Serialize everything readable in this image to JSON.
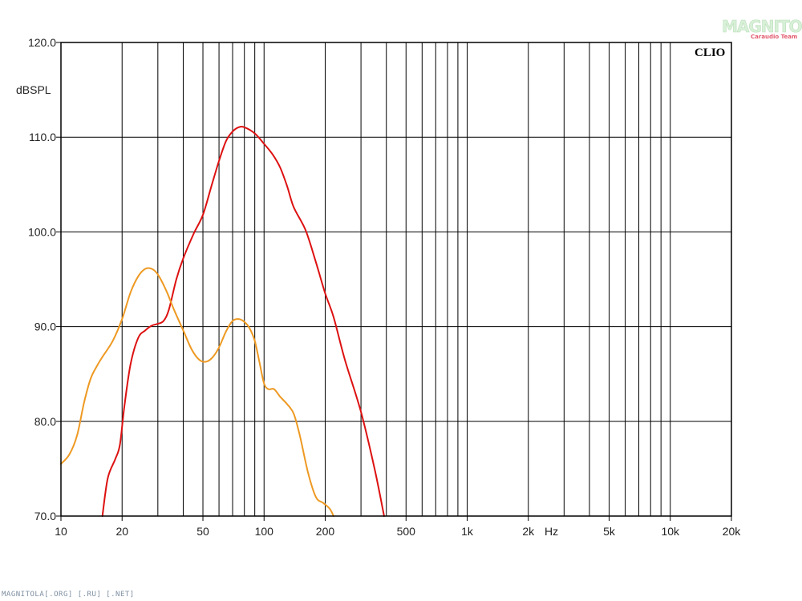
{
  "chart_data": {
    "type": "line",
    "ylabel": "dBSPL",
    "xunit": "Hz",
    "brand": "CLIO",
    "x_scale": "log",
    "xlim": [
      10,
      20000
    ],
    "ylim": [
      70,
      120
    ],
    "grid": true,
    "y_ticks": [
      {
        "value": 70,
        "label": "70.0"
      },
      {
        "value": 80,
        "label": "80.0"
      },
      {
        "value": 90,
        "label": "90.0"
      },
      {
        "value": 100,
        "label": "100.0"
      },
      {
        "value": 110,
        "label": "110.0"
      },
      {
        "value": 120,
        "label": "120.0"
      }
    ],
    "x_ticks": [
      {
        "value": 10,
        "label": "10"
      },
      {
        "value": 20,
        "label": "20"
      },
      {
        "value": 50,
        "label": "50"
      },
      {
        "value": 100,
        "label": "100"
      },
      {
        "value": 200,
        "label": "200"
      },
      {
        "value": 500,
        "label": "500"
      },
      {
        "value": 1000,
        "label": "1k"
      },
      {
        "value": 2000,
        "label": "2k"
      },
      {
        "value": 5000,
        "label": "5k"
      },
      {
        "value": 10000,
        "label": "10k"
      },
      {
        "value": 20000,
        "label": "20k"
      }
    ],
    "series": [
      {
        "color": "#dd1111",
        "points": [
          [
            16,
            70
          ],
          [
            17,
            74
          ],
          [
            18.5,
            76
          ],
          [
            19.5,
            77.5
          ],
          [
            20.5,
            81.5
          ],
          [
            22,
            86
          ],
          [
            24,
            88.8
          ],
          [
            26,
            89.6
          ],
          [
            28,
            90.1
          ],
          [
            30,
            90.3
          ],
          [
            32,
            90.6
          ],
          [
            34,
            91.8
          ],
          [
            37,
            95
          ],
          [
            40,
            97.2
          ],
          [
            45,
            99.8
          ],
          [
            50,
            101.8
          ],
          [
            55,
            104.8
          ],
          [
            60,
            107.5
          ],
          [
            65,
            109.6
          ],
          [
            70,
            110.6
          ],
          [
            75,
            111.05
          ],
          [
            80,
            111.05
          ],
          [
            90,
            110.4
          ],
          [
            100,
            109.3
          ],
          [
            110,
            108.2
          ],
          [
            120,
            106.8
          ],
          [
            130,
            104.8
          ],
          [
            140,
            102.6
          ],
          [
            160,
            100.2
          ],
          [
            180,
            96.8
          ],
          [
            200,
            93.5
          ],
          [
            220,
            91
          ],
          [
            250,
            86.5
          ],
          [
            300,
            81
          ],
          [
            350,
            75
          ],
          [
            390,
            70
          ]
        ]
      },
      {
        "color": "#ee9922",
        "points": [
          [
            10,
            75.5
          ],
          [
            11,
            76.5
          ],
          [
            12,
            78.5
          ],
          [
            13,
            82
          ],
          [
            14,
            84.5
          ],
          [
            15,
            85.8
          ],
          [
            16,
            86.8
          ],
          [
            18,
            88.5
          ],
          [
            20,
            90.8
          ],
          [
            22,
            93.6
          ],
          [
            24,
            95.3
          ],
          [
            26,
            96.1
          ],
          [
            28,
            96.1
          ],
          [
            30,
            95.5
          ],
          [
            33,
            93.8
          ],
          [
            36,
            91.8
          ],
          [
            40,
            89.6
          ],
          [
            44,
            87.6
          ],
          [
            48,
            86.5
          ],
          [
            52,
            86.3
          ],
          [
            56,
            86.8
          ],
          [
            60,
            87.8
          ],
          [
            65,
            89.5
          ],
          [
            70,
            90.6
          ],
          [
            75,
            90.8
          ],
          [
            80,
            90.5
          ],
          [
            85,
            89.8
          ],
          [
            90,
            88.5
          ],
          [
            95,
            86.2
          ],
          [
            100,
            84
          ],
          [
            105,
            83.4
          ],
          [
            112,
            83.4
          ],
          [
            120,
            82.6
          ],
          [
            130,
            81.8
          ],
          [
            140,
            80.8
          ],
          [
            150,
            78.5
          ],
          [
            165,
            74.5
          ],
          [
            180,
            72
          ],
          [
            195,
            71.4
          ],
          [
            210,
            70.8
          ],
          [
            220,
            70
          ]
        ]
      }
    ]
  },
  "watermark": {
    "logo": "MAGNITOLA",
    "tagline": "Caraudio Team",
    "footer": "MAGNITOLA[.ORG] [.RU] [.NET]"
  }
}
